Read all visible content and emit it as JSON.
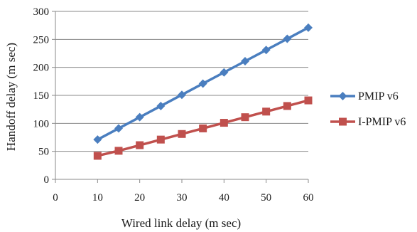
{
  "chart_data": {
    "type": "line",
    "title": "",
    "xlabel": "Wired link delay (m sec)",
    "ylabel": "Handoff delay (m sec)",
    "xlim": [
      0,
      60
    ],
    "ylim": [
      0,
      300
    ],
    "xticks": [
      0,
      10,
      20,
      30,
      40,
      50,
      60
    ],
    "yticks": [
      0,
      50,
      100,
      150,
      200,
      250,
      300
    ],
    "grid": "horizontal",
    "legend_position": "right",
    "x": [
      10,
      15,
      20,
      25,
      30,
      35,
      40,
      45,
      50,
      55,
      60
    ],
    "series": [
      {
        "name": "PMIP v6",
        "color": "#4a7ebf",
        "marker": "diamond",
        "values": [
          71,
          91,
          111,
          131,
          151,
          171,
          191,
          211,
          231,
          251,
          271
        ]
      },
      {
        "name": "I-PMIP v6",
        "color": "#c0504d",
        "marker": "square",
        "values": [
          42,
          51,
          61,
          71,
          81,
          91,
          101,
          111,
          121,
          131,
          141
        ]
      }
    ]
  }
}
